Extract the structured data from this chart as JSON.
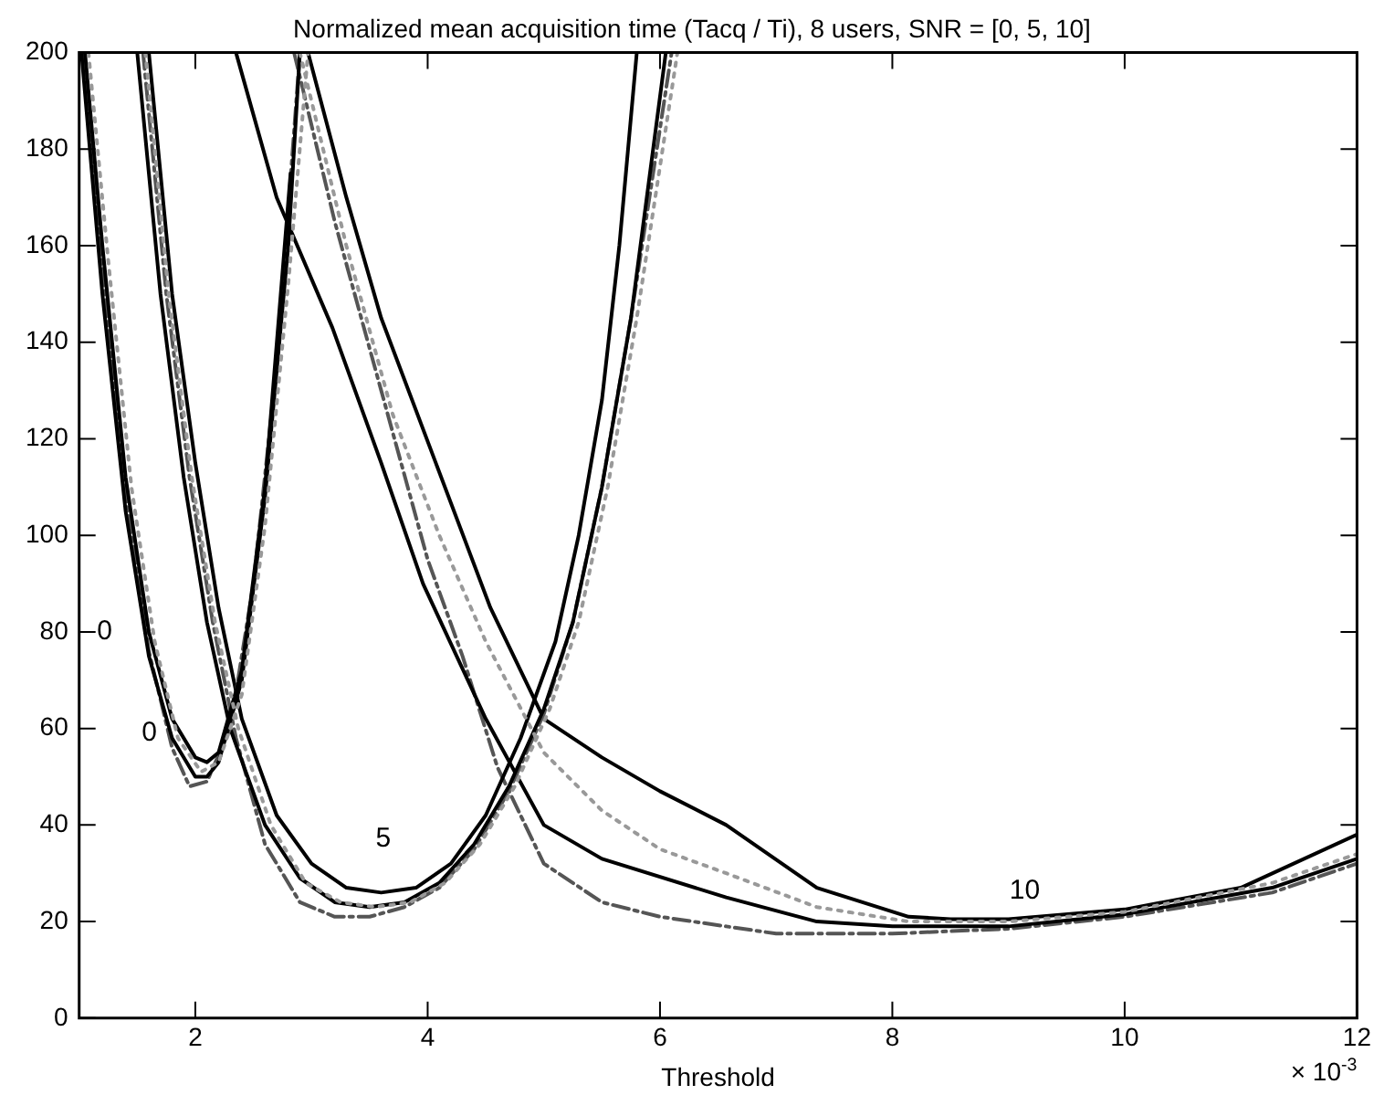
{
  "chart_data": {
    "type": "line",
    "title": "Normalized mean acquisition time (Tacq / Ti), 8 users, SNR = [0, 5, 10]",
    "xlabel": "Threshold",
    "xlim": [
      1,
      12
    ],
    "xticks": [
      2,
      4,
      6,
      8,
      10,
      12
    ],
    "ylim": [
      0,
      200
    ],
    "yticks": [
      0,
      20,
      40,
      60,
      80,
      100,
      120,
      140,
      160,
      180,
      200
    ],
    "grid": false,
    "legend": false,
    "marker": "none",
    "annotations": [
      "0",
      "0",
      "5",
      "10",
      "× 10$^{-3}$"
    ],
    "series": [
      {
        "color": "#000000",
        "line_style": "solid",
        "x": [
          1.05,
          1.2,
          1.4,
          1.6,
          1.8,
          2.0,
          2.1,
          2.2,
          2.4,
          2.6,
          2.82
        ],
        "values": [
          200,
          160,
          112,
          80,
          62,
          54,
          53,
          55,
          72,
          110,
          175
        ]
      },
      {
        "color": "#000000",
        "line_style": "solid",
        "x": [
          1.02,
          1.2,
          1.4,
          1.6,
          1.8,
          2.0,
          2.1,
          2.2,
          2.4,
          2.6,
          2.8,
          2.9
        ],
        "values": [
          200,
          150,
          105,
          75,
          58,
          50,
          50,
          53,
          70,
          108,
          160,
          200
        ]
      },
      {
        "color": "#555555",
        "line_style": "dashed",
        "x": [
          1.03,
          1.2,
          1.4,
          1.6,
          1.8,
          1.95,
          2.1,
          2.3,
          2.5,
          2.7,
          2.9
        ],
        "values": [
          200,
          155,
          108,
          76,
          56,
          48,
          49,
          60,
          90,
          135,
          200
        ]
      },
      {
        "color": "#999999",
        "line_style": "dotted",
        "x": [
          1.08,
          1.25,
          1.45,
          1.65,
          1.85,
          2.05,
          2.2,
          2.4,
          2.6,
          2.8,
          2.97
        ],
        "values": [
          200,
          157,
          110,
          78,
          58,
          51,
          53,
          67,
          102,
          152,
          200
        ]
      },
      {
        "color": "#000000",
        "line_style": "solid",
        "x": [
          1.6,
          1.8,
          2.0,
          2.2,
          2.4,
          2.7,
          3.0,
          3.3,
          3.6,
          3.9,
          4.2,
          4.5,
          4.8,
          5.1,
          5.3,
          5.5,
          5.65,
          5.8
        ],
        "values": [
          200,
          150,
          115,
          85,
          62,
          42,
          32,
          27,
          26,
          27,
          32,
          42,
          58,
          78,
          100,
          128,
          160,
          200
        ]
      },
      {
        "color": "#000000",
        "line_style": "solid",
        "x": [
          1.5,
          1.7,
          1.9,
          2.1,
          2.3,
          2.6,
          2.9,
          3.2,
          3.5,
          3.8,
          4.1,
          4.4,
          4.7,
          5.0,
          5.25,
          5.5,
          5.75,
          6.05
        ],
        "values": [
          200,
          150,
          112,
          82,
          60,
          40,
          29,
          24,
          23,
          24,
          28,
          36,
          48,
          64,
          82,
          110,
          145,
          200
        ]
      },
      {
        "color": "#555555",
        "line_style": "dashed",
        "x": [
          1.55,
          1.75,
          1.95,
          2.15,
          2.35,
          2.6,
          2.9,
          3.2,
          3.5,
          3.8,
          4.1,
          4.4,
          4.7,
          5.0,
          5.25,
          5.5,
          5.75,
          6.1
        ],
        "values": [
          200,
          150,
          112,
          82,
          58,
          36,
          24,
          21,
          21,
          23,
          27,
          35,
          47,
          63,
          82,
          110,
          145,
          200
        ]
      },
      {
        "color": "#999999",
        "line_style": "dotted",
        "x": [
          1.57,
          1.77,
          1.97,
          2.17,
          2.37,
          2.65,
          2.95,
          3.25,
          3.55,
          3.85,
          4.15,
          4.45,
          4.75,
          5.05,
          5.3,
          5.55,
          5.8,
          6.15
        ],
        "values": [
          200,
          150,
          112,
          82,
          60,
          40,
          28,
          24,
          23,
          24,
          28,
          36,
          48,
          64,
          82,
          110,
          145,
          200
        ]
      },
      {
        "color": "#000000",
        "line_style": "solid",
        "x": [
          2.97,
          3.3,
          3.6,
          4.07,
          4.54,
          5.0,
          5.5,
          6.0,
          6.57,
          7.35,
          8.14,
          8.5,
          9.0,
          10.0,
          11.0,
          12.0
        ],
        "values": [
          200,
          170,
          145,
          115,
          85,
          62,
          54,
          47,
          40,
          27,
          21,
          20.5,
          20.5,
          22.5,
          27,
          38
        ]
      },
      {
        "color": "#000000",
        "line_style": "solid",
        "x": [
          2.35,
          2.7,
          3.18,
          3.6,
          3.96,
          4.5,
          5.0,
          5.5,
          6.57,
          7.35,
          8.0,
          9.0,
          10.0,
          11.27,
          12.0
        ],
        "values": [
          200,
          170,
          143,
          115,
          90,
          62,
          40,
          33,
          25,
          20,
          19,
          19,
          21.5,
          27,
          33
        ]
      },
      {
        "color": "#555555",
        "line_style": "dashed",
        "x": [
          2.85,
          3.2,
          3.6,
          4.0,
          4.3,
          4.6,
          5.0,
          5.5,
          6.0,
          6.57,
          7.0,
          8.0,
          9.0,
          10.0,
          11.27,
          12.0
        ],
        "values": [
          200,
          165,
          130,
          95,
          75,
          52,
          32,
          24,
          21,
          19,
          17.5,
          17.5,
          18.5,
          21,
          26,
          32
        ]
      },
      {
        "color": "#999999",
        "line_style": "dotted",
        "x": [
          2.9,
          3.3,
          3.7,
          4.1,
          4.5,
          5.0,
          5.5,
          6.0,
          6.57,
          7.35,
          8.14,
          9.0,
          10.0,
          11.27,
          12.0
        ],
        "values": [
          200,
          160,
          125,
          100,
          78,
          55,
          43,
          35,
          30,
          23,
          20,
          20,
          22,
          28,
          34
        ]
      }
    ]
  }
}
